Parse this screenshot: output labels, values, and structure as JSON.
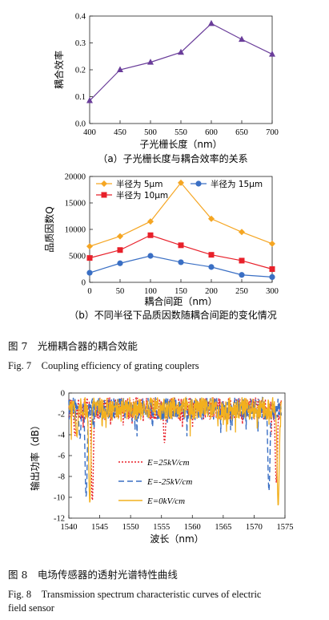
{
  "fig7": {
    "caption_zh": "图 7　光栅耦合器的耦合效能",
    "caption_en": "Fig. 7　Coupling efficiency of grating couplers"
  },
  "fig8": {
    "caption_zh": "图 8　电场传感器的透射光谱特性曲线",
    "caption_en_1": "Fig. 8　Transmission spectrum characteristic curves of electric",
    "caption_en_2": "field sensor"
  },
  "chart_data": [
    {
      "id": "a",
      "type": "line",
      "x": [
        400,
        450,
        500,
        550,
        600,
        650,
        700
      ],
      "series": [
        {
          "values": [
            0.085,
            0.2,
            0.228,
            0.265,
            0.372,
            0.313,
            0.258
          ],
          "color": "#6a3d9a",
          "marker": "triangle"
        }
      ],
      "xlabel": "子光栅长度（nm）",
      "ylabel": "耦合效率",
      "xlim": [
        400,
        700
      ],
      "ylim": [
        0,
        0.4
      ],
      "xticks": [
        "400",
        "450",
        "500",
        "550",
        "600",
        "650",
        "700"
      ],
      "yticks": [
        "0.0",
        "0.1",
        "0.2",
        "0.3",
        "0.4"
      ],
      "caption": "（a）子光栅长度与耦合效率的关系"
    },
    {
      "id": "b",
      "type": "line",
      "x": [
        0,
        50,
        100,
        150,
        200,
        250,
        300
      ],
      "series": [
        {
          "name": "半径为 5μm",
          "values": [
            6800,
            8700,
            11500,
            18800,
            12000,
            9500,
            7300
          ],
          "color": "#f5a623",
          "marker": "diamond"
        },
        {
          "name": "半径为 10μm",
          "values": [
            4600,
            6100,
            8900,
            7000,
            5200,
            4100,
            2500
          ],
          "color": "#e8202a",
          "marker": "square"
        },
        {
          "name": "半径为 15μm",
          "values": [
            1800,
            3600,
            5000,
            3800,
            2900,
            1400,
            1000
          ],
          "color": "#3a6fc4",
          "marker": "circle"
        }
      ],
      "xlabel": "耦合间距（nm）",
      "ylabel": "品质因数Q",
      "xlim": [
        0,
        300
      ],
      "ylim": [
        0,
        20000
      ],
      "xticks": [
        "0",
        "50",
        "100",
        "150",
        "200",
        "250",
        "300"
      ],
      "yticks": [
        "0",
        "5000",
        "10000",
        "15000",
        "20000"
      ],
      "legend": "top",
      "caption": "（b）不同半径下品质因数随耦合间距的变化情况"
    },
    {
      "id": "fig8",
      "type": "line",
      "xlabel": "波长（nm）",
      "ylabel": "输出功率（dB）",
      "xlim": [
        1540,
        1575
      ],
      "ylim": [
        -12,
        0
      ],
      "xticks": [
        "1540",
        "1545",
        "1550",
        "1555",
        "1560",
        "1565",
        "1570",
        "1575"
      ],
      "yticks": [
        "0",
        "-2",
        "-4",
        "-6",
        "-8",
        "-10",
        "-12"
      ],
      "legend": "inside-lower-left",
      "series": [
        {
          "name": "E=25kV/cm",
          "color": "#e8202a",
          "dash": "dotted",
          "x": [
            1541.0,
            1543.8,
            1555.5,
            1573.6
          ],
          "y": [
            -3.5,
            -9.8,
            -4.2,
            -8.0
          ]
        },
        {
          "name": "E=-25kV/cm",
          "color": "#3a6fc4",
          "dash": "dashed",
          "x": [
            1541.8,
            1542.8,
            1572.4
          ],
          "y": [
            -3.8,
            -9.4,
            -8.8
          ]
        },
        {
          "name": "E=0kV/cm",
          "color": "#f2b01e",
          "dash": "solid",
          "x": [
            1541.3,
            1543.4,
            1573.9
          ],
          "y": [
            -3.6,
            -10.0,
            -10.3
          ]
        }
      ]
    }
  ]
}
